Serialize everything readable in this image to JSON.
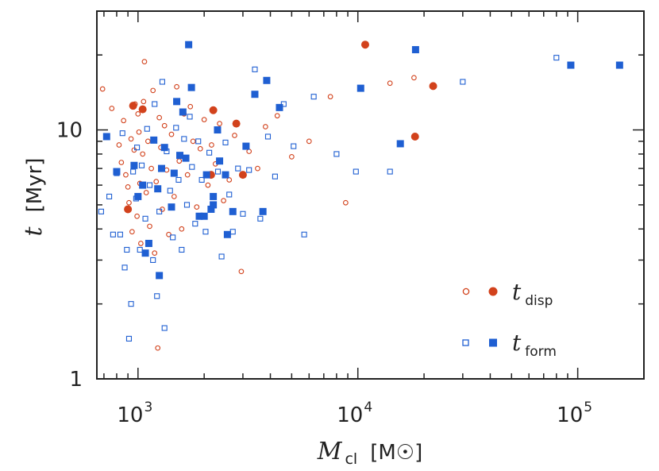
{
  "chart_data": {
    "type": "scatter",
    "title": "",
    "xscale": "log",
    "yscale": "log",
    "xlim": [
      650,
      200000
    ],
    "ylim": [
      1,
      30
    ],
    "xlabel": {
      "symbol": "M",
      "sub": "cl",
      "unit": "[M☉]"
    },
    "ylabel": {
      "symbol": "t",
      "unit": "[Myr]"
    },
    "x_ticks": [
      {
        "value": 1000,
        "base": "10",
        "exp": "3"
      },
      {
        "value": 10000,
        "base": "10",
        "exp": "4"
      },
      {
        "value": 100000,
        "base": "10",
        "exp": "5"
      }
    ],
    "y_ticks": [
      {
        "value": 1,
        "label": "1"
      },
      {
        "value": 10,
        "label": "10"
      }
    ],
    "legend_position": "bottom-right",
    "series": [
      {
        "name": "t_disp",
        "legend": {
          "main": "t",
          "sub": "disp"
        },
        "color": "#d2421c",
        "hollow_marker": "circle",
        "points_hollow": [
          [
            690,
            14.6
          ],
          [
            760,
            12.2
          ],
          [
            820,
            8.7
          ],
          [
            840,
            7.4
          ],
          [
            860,
            10.9
          ],
          [
            880,
            6.6
          ],
          [
            900,
            5.9
          ],
          [
            910,
            5.1
          ],
          [
            930,
            9.2
          ],
          [
            940,
            3.9
          ],
          [
            960,
            8.3
          ],
          [
            970,
            12.7
          ],
          [
            990,
            4.5
          ],
          [
            1000,
            11.6
          ],
          [
            1010,
            9.8
          ],
          [
            1020,
            6.1
          ],
          [
            1030,
            3.5
          ],
          [
            1050,
            8.0
          ],
          [
            1060,
            13.0
          ],
          [
            1070,
            18.8
          ],
          [
            1090,
            5.6
          ],
          [
            1110,
            9.0
          ],
          [
            1130,
            4.1
          ],
          [
            1150,
            7.0
          ],
          [
            1170,
            14.4
          ],
          [
            1190,
            3.2
          ],
          [
            1210,
            6.2
          ],
          [
            1230,
            1.33
          ],
          [
            1250,
            11.2
          ],
          [
            1270,
            8.5
          ],
          [
            1290,
            4.8
          ],
          [
            1320,
            10.4
          ],
          [
            1350,
            6.9
          ],
          [
            1380,
            3.8
          ],
          [
            1420,
            9.6
          ],
          [
            1460,
            5.4
          ],
          [
            1500,
            14.9
          ],
          [
            1540,
            7.5
          ],
          [
            1580,
            4.0
          ],
          [
            1620,
            11.6
          ],
          [
            1680,
            6.6
          ],
          [
            1730,
            12.4
          ],
          [
            1780,
            9.0
          ],
          [
            1850,
            4.9
          ],
          [
            1920,
            8.4
          ],
          [
            2000,
            11.0
          ],
          [
            2080,
            6.0
          ],
          [
            2160,
            8.7
          ],
          [
            2250,
            7.3
          ],
          [
            2350,
            10.6
          ],
          [
            2450,
            5.2
          ],
          [
            2600,
            6.3
          ],
          [
            2750,
            9.5
          ],
          [
            2950,
            2.7
          ],
          [
            3200,
            8.2
          ],
          [
            3500,
            7.0
          ],
          [
            3800,
            10.3
          ],
          [
            4300,
            11.4
          ],
          [
            5000,
            7.8
          ],
          [
            6000,
            9.0
          ],
          [
            7500,
            13.6
          ],
          [
            8800,
            5.1
          ],
          [
            14000,
            15.4
          ],
          [
            18000,
            16.2
          ]
        ],
        "points_filled": [
          [
            900,
            4.8
          ],
          [
            950,
            12.5
          ],
          [
            1050,
            12.1
          ],
          [
            2150,
            6.6
          ],
          [
            2200,
            12.0
          ],
          [
            2800,
            10.6
          ],
          [
            3000,
            6.6
          ],
          [
            10800,
            22.0
          ],
          [
            18200,
            9.4
          ],
          [
            22000,
            15.0
          ]
        ]
      },
      {
        "name": "t_form",
        "legend": {
          "main": "t",
          "sub": "form"
        },
        "color": "#1f5fd2",
        "hollow_marker": "square",
        "points_hollow": [
          [
            680,
            4.7
          ],
          [
            740,
            5.4
          ],
          [
            770,
            3.8
          ],
          [
            800,
            6.7
          ],
          [
            830,
            3.8
          ],
          [
            850,
            9.7
          ],
          [
            870,
            2.8
          ],
          [
            890,
            3.3
          ],
          [
            910,
            1.45
          ],
          [
            930,
            2.0
          ],
          [
            950,
            6.8
          ],
          [
            980,
            5.3
          ],
          [
            990,
            8.5
          ],
          [
            1020,
            3.3
          ],
          [
            1040,
            7.2
          ],
          [
            1080,
            4.4
          ],
          [
            1100,
            10.1
          ],
          [
            1130,
            6.0
          ],
          [
            1170,
            3.0
          ],
          [
            1190,
            12.7
          ],
          [
            1220,
            2.15
          ],
          [
            1250,
            4.7
          ],
          [
            1290,
            15.6
          ],
          [
            1320,
            1.6
          ],
          [
            1350,
            8.2
          ],
          [
            1400,
            5.7
          ],
          [
            1440,
            3.7
          ],
          [
            1490,
            10.2
          ],
          [
            1530,
            6.3
          ],
          [
            1580,
            3.3
          ],
          [
            1620,
            9.2
          ],
          [
            1670,
            5.0
          ],
          [
            1720,
            11.3
          ],
          [
            1760,
            7.1
          ],
          [
            1820,
            4.2
          ],
          [
            1880,
            9.0
          ],
          [
            1950,
            6.3
          ],
          [
            2030,
            3.9
          ],
          [
            2110,
            8.1
          ],
          [
            2200,
            5.0
          ],
          [
            2310,
            6.8
          ],
          [
            2400,
            3.1
          ],
          [
            2500,
            8.9
          ],
          [
            2600,
            5.5
          ],
          [
            2700,
            3.9
          ],
          [
            2850,
            7.0
          ],
          [
            3000,
            4.6
          ],
          [
            3200,
            6.9
          ],
          [
            3400,
            17.5
          ],
          [
            3600,
            4.4
          ],
          [
            3900,
            9.4
          ],
          [
            4200,
            6.5
          ],
          [
            4600,
            12.7
          ],
          [
            5100,
            8.6
          ],
          [
            5700,
            3.8
          ],
          [
            6300,
            13.6
          ],
          [
            8000,
            8.0
          ],
          [
            9800,
            6.8
          ],
          [
            14000,
            6.8
          ],
          [
            30000,
            15.6
          ],
          [
            80000,
            19.5
          ]
        ],
        "points_filled": [
          [
            720,
            9.4
          ],
          [
            800,
            6.8
          ],
          [
            960,
            7.2
          ],
          [
            1000,
            5.4
          ],
          [
            1050,
            6.0
          ],
          [
            1080,
            3.2
          ],
          [
            1120,
            3.5
          ],
          [
            1180,
            9.1
          ],
          [
            1230,
            5.8
          ],
          [
            1250,
            2.6
          ],
          [
            1280,
            7.0
          ],
          [
            1320,
            8.5
          ],
          [
            1420,
            4.9
          ],
          [
            1460,
            6.7
          ],
          [
            1500,
            13.0
          ],
          [
            1550,
            7.9
          ],
          [
            1600,
            11.8
          ],
          [
            1650,
            7.7
          ],
          [
            1700,
            22.0
          ],
          [
            1750,
            14.8
          ],
          [
            1900,
            4.5
          ],
          [
            2000,
            4.5
          ],
          [
            2050,
            6.6
          ],
          [
            2150,
            4.8
          ],
          [
            2200,
            5.4
          ],
          [
            2200,
            5.0
          ],
          [
            2300,
            10.0
          ],
          [
            2350,
            7.5
          ],
          [
            2500,
            6.6
          ],
          [
            2550,
            3.8
          ],
          [
            2700,
            4.7
          ],
          [
            3100,
            8.6
          ],
          [
            3400,
            13.9
          ],
          [
            3700,
            4.7
          ],
          [
            3850,
            15.8
          ],
          [
            4400,
            12.3
          ],
          [
            10300,
            14.7
          ],
          [
            15600,
            8.8
          ],
          [
            18300,
            21.0
          ],
          [
            93000,
            18.2
          ],
          [
            155000,
            18.2
          ]
        ]
      }
    ]
  }
}
